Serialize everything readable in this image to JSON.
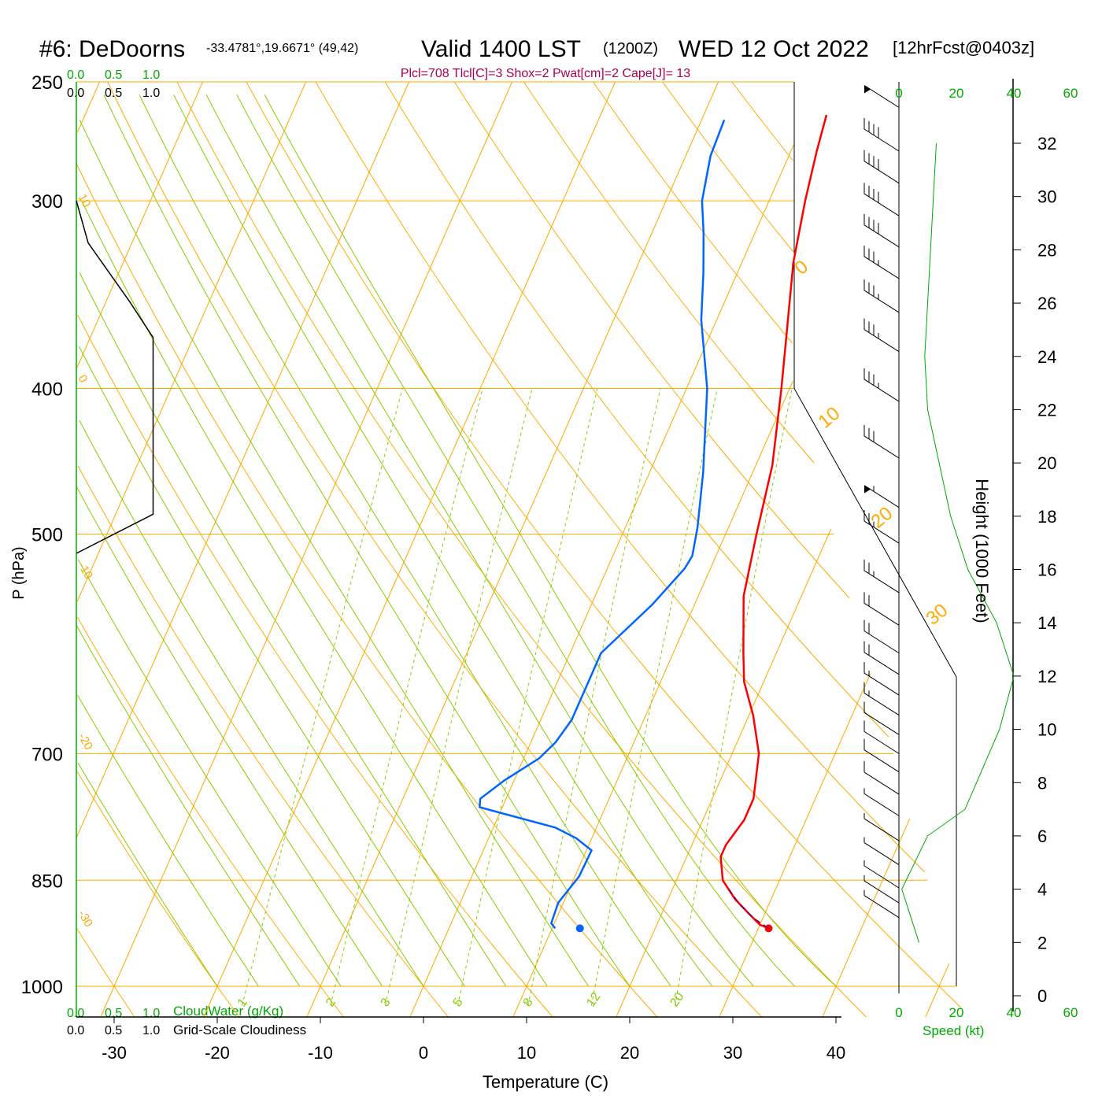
{
  "header": {
    "station": "#6: DeDoorns",
    "coords": "-33.4781°,19.6671° (49,42)",
    "valid": "Valid 1400 LST",
    "zulu": "(1200Z)",
    "date": "WED 12 Oct 2022",
    "forecast": "[12hrFcst@0403z]",
    "indices": "Plcl=708 Tlcl[C]=3 Shox=2 Pwat[cm]=2 Cape[J]= 13"
  },
  "colors": {
    "temperature": "#ff0000",
    "dewpoint": "#0066ff",
    "isotherm": "#ffaa00",
    "adiabat": "#88cc00",
    "cloudwater": "#00aa00",
    "axis": "#000000",
    "indices": "#aa0055"
  },
  "labels": {
    "x_axis": "Temperature (C)",
    "y_axis": "P (hPa)",
    "height_axis": "Height (1000 Feet)",
    "cloudwater": "CloudWater (g/Kg)",
    "cloudiness": "Grid-Scale Cloudiness",
    "speed": "Speed (kt)",
    "cloud_scale": [
      "0.0",
      "0.5",
      "1.0"
    ],
    "speed_scale": [
      "0",
      "20",
      "40",
      "60"
    ]
  },
  "chart_data": {
    "type": "line",
    "chart_kind": "skew-T log-P sounding",
    "x_ticks": [
      -30,
      -20,
      -10,
      0,
      10,
      20,
      30,
      40
    ],
    "pressure_ticks": [
      250,
      300,
      400,
      500,
      700,
      850,
      1000
    ],
    "height_ticks_kft": [
      0,
      2,
      4,
      6,
      8,
      10,
      12,
      14,
      16,
      18,
      20,
      22,
      24,
      26,
      28,
      30,
      32
    ],
    "mixing_ratio_labels": [
      "1",
      "2",
      "3",
      "5",
      "8",
      "12",
      "20"
    ],
    "isotherm_labels_left": [
      "10",
      "0",
      "-10",
      "-20",
      "-30"
    ],
    "isotherm_labels_right": [
      "0",
      "10",
      "20",
      "30"
    ],
    "series": [
      {
        "name": "Temperature",
        "points": [
          [
            31.0,
            915
          ],
          [
            30.0,
            910
          ],
          [
            28.5,
            895
          ],
          [
            26.5,
            875
          ],
          [
            24.5,
            850
          ],
          [
            23.3,
            820
          ],
          [
            23.3,
            805
          ],
          [
            24.0,
            775
          ],
          [
            24.0,
            750
          ],
          [
            22.6,
            700
          ],
          [
            20.4,
            660
          ],
          [
            18.1,
            627
          ],
          [
            16.8,
            600
          ],
          [
            14.4,
            550
          ],
          [
            13.0,
            500
          ],
          [
            11.6,
            450
          ],
          [
            9.2,
            400
          ],
          [
            6.9,
            360
          ],
          [
            5.0,
            330
          ],
          [
            3.5,
            300
          ],
          [
            2.5,
            278
          ],
          [
            1.9,
            263
          ]
        ]
      },
      {
        "name": "Dewpoint",
        "points": [
          [
            10.3,
            915
          ],
          [
            9.7,
            908
          ],
          [
            9.5,
            880
          ],
          [
            10.4,
            845
          ],
          [
            10.5,
            812
          ],
          [
            8.5,
            797
          ],
          [
            6.0,
            784
          ],
          [
            -2.2,
            760
          ],
          [
            -2.5,
            750
          ],
          [
            -1.0,
            730
          ],
          [
            1.5,
            705
          ],
          [
            2.4,
            688
          ],
          [
            3.0,
            665
          ],
          [
            3.0,
            600
          ],
          [
            5.9,
            557
          ],
          [
            7.5,
            527
          ],
          [
            7.7,
            517
          ],
          [
            7.0,
            495
          ],
          [
            5.2,
            455
          ],
          [
            2.0,
            400
          ],
          [
            -1.5,
            360
          ],
          [
            -3.3,
            335
          ],
          [
            -5.0,
            315
          ],
          [
            -6.5,
            300
          ],
          [
            -7.6,
            280
          ],
          [
            -7.8,
            265
          ]
        ]
      }
    ],
    "surface_parcel": {
      "temperature": 31.0,
      "dewpoint": 12.7,
      "pressure": 915
    },
    "cloudiness_profile": [
      [
        0,
        300
      ],
      [
        0.1,
        320
      ],
      [
        0.45,
        350
      ],
      [
        0.65,
        370
      ],
      [
        0.65,
        485
      ],
      [
        0,
        515
      ]
    ],
    "wind_speed_profile_kt": [
      [
        7,
        2
      ],
      [
        1,
        4
      ],
      [
        10,
        6
      ],
      [
        23,
        7
      ],
      [
        35,
        10
      ],
      [
        40,
        12
      ],
      [
        34,
        14
      ],
      [
        24,
        16
      ],
      [
        18,
        18
      ],
      [
        14,
        20
      ],
      [
        10,
        22
      ],
      [
        9,
        24
      ],
      [
        10,
        26
      ],
      [
        11,
        28
      ],
      [
        12,
        30
      ],
      [
        13,
        32
      ]
    ],
    "wind_barbs": [
      {
        "p": 260,
        "kt": 50
      },
      {
        "p": 278,
        "kt": 40
      },
      {
        "p": 292,
        "kt": 40
      },
      {
        "p": 307,
        "kt": 40
      },
      {
        "p": 322,
        "kt": 40
      },
      {
        "p": 338,
        "kt": 35
      },
      {
        "p": 356,
        "kt": 35
      },
      {
        "p": 378,
        "kt": 35
      },
      {
        "p": 408,
        "kt": 35
      },
      {
        "p": 445,
        "kt": 30
      },
      {
        "p": 480,
        "kt": 55
      },
      {
        "p": 507,
        "kt": 25
      },
      {
        "p": 547,
        "kt": 25
      },
      {
        "p": 575,
        "kt": 20
      },
      {
        "p": 600,
        "kt": 20
      },
      {
        "p": 620,
        "kt": 20
      },
      {
        "p": 640,
        "kt": 15
      },
      {
        "p": 660,
        "kt": 15
      },
      {
        "p": 680,
        "kt": 10
      },
      {
        "p": 700,
        "kt": 10
      },
      {
        "p": 720,
        "kt": 10
      },
      {
        "p": 745,
        "kt": 10
      },
      {
        "p": 770,
        "kt": 5
      },
      {
        "p": 800,
        "kt": 5
      },
      {
        "p": 830,
        "kt": 5
      },
      {
        "p": 860,
        "kt": 5
      },
      {
        "p": 880,
        "kt": 5
      },
      {
        "p": 900,
        "kt": 5
      }
    ]
  }
}
